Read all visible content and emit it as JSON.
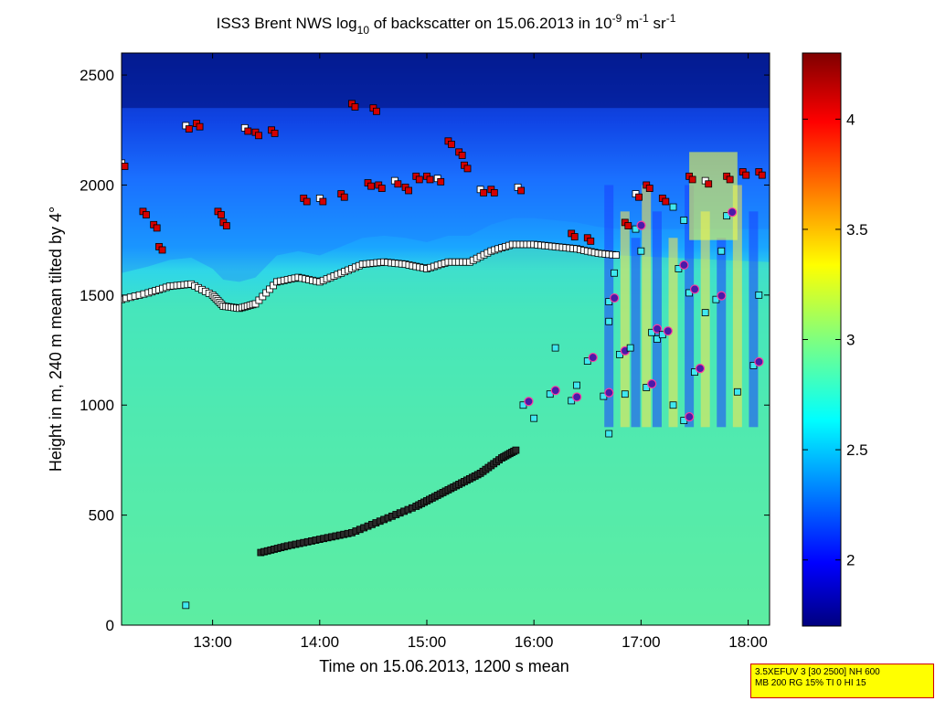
{
  "chart_data": {
    "type": "heatmap",
    "title": {
      "prefix": "ISS3 Brent NWS log",
      "sub": "10",
      "mid": " of backscatter on 15.06.2013 in 10",
      "sup1": "-9",
      "mid2": " m",
      "sup2": "-1",
      "mid3": " sr",
      "sup3": "-1"
    },
    "xlabel": "Time on 15.06.2013, 1200 s mean",
    "ylabel": "Height in m, 240 m mean tilted by 4°",
    "xlim": [
      12.15,
      18.2
    ],
    "ylim": [
      0,
      2600
    ],
    "x_ticks": [
      {
        "value": 13,
        "label": "13:00"
      },
      {
        "value": 14,
        "label": "14:00"
      },
      {
        "value": 15,
        "label": "15:00"
      },
      {
        "value": 16,
        "label": "16:00"
      },
      {
        "value": 17,
        "label": "17:00"
      },
      {
        "value": 18,
        "label": "18:00"
      }
    ],
    "y_ticks": [
      {
        "value": 0,
        "label": "0"
      },
      {
        "value": 500,
        "label": "500"
      },
      {
        "value": 1000,
        "label": "1000"
      },
      {
        "value": 1500,
        "label": "1500"
      },
      {
        "value": 2000,
        "label": "2000"
      },
      {
        "value": 2500,
        "label": "2500"
      }
    ],
    "colorbar": {
      "range": [
        1.7,
        4.3
      ],
      "ticks": [
        {
          "value": 2,
          "label": "2"
        },
        {
          "value": 2.5,
          "label": "2.5"
        },
        {
          "value": 3,
          "label": "3"
        },
        {
          "value": 3.5,
          "label": "3.5"
        },
        {
          "value": 4,
          "label": "4"
        }
      ],
      "colormap": "jet"
    },
    "field": {
      "background_value": 2.85,
      "mixed_layer_top_value": 2.7,
      "free_troposphere_value": 2.2,
      "upper_value": 1.8
    },
    "boundary_layer_top": {
      "name": "mixed-layer top",
      "x": [
        12.15,
        12.4,
        12.6,
        12.8,
        13.0,
        13.1,
        13.25,
        13.4,
        13.6,
        13.8,
        14.0,
        14.2,
        14.4,
        14.6,
        14.8,
        15.0,
        15.2,
        15.4,
        15.6,
        15.8,
        16.0,
        16.2,
        16.4,
        16.6,
        16.8
      ],
      "y": [
        1480,
        1510,
        1540,
        1550,
        1500,
        1450,
        1440,
        1460,
        1560,
        1580,
        1560,
        1600,
        1640,
        1650,
        1640,
        1620,
        1650,
        1650,
        1700,
        1730,
        1730,
        1720,
        1710,
        1690,
        1680
      ]
    },
    "developing_layer": {
      "name": "growing boundary layer",
      "x": [
        13.45,
        13.7,
        14.0,
        14.3,
        14.6,
        14.9,
        15.1,
        15.3,
        15.5,
        15.7,
        15.85
      ],
      "y": [
        330,
        360,
        390,
        420,
        480,
        540,
        590,
        640,
        690,
        760,
        800
      ]
    },
    "upper_layers": {
      "name": "elevated layers",
      "points": [
        {
          "x": 12.15,
          "y": 2100
        },
        {
          "x": 12.35,
          "y": 1880
        },
        {
          "x": 12.45,
          "y": 1820
        },
        {
          "x": 12.5,
          "y": 1720
        },
        {
          "x": 12.75,
          "y": 2270
        },
        {
          "x": 12.85,
          "y": 2280
        },
        {
          "x": 13.05,
          "y": 1880
        },
        {
          "x": 13.1,
          "y": 1830
        },
        {
          "x": 13.3,
          "y": 2260
        },
        {
          "x": 13.4,
          "y": 2240
        },
        {
          "x": 13.55,
          "y": 2250
        },
        {
          "x": 13.85,
          "y": 1940
        },
        {
          "x": 14.0,
          "y": 1940
        },
        {
          "x": 14.2,
          "y": 1960
        },
        {
          "x": 14.45,
          "y": 2010
        },
        {
          "x": 14.55,
          "y": 2000
        },
        {
          "x": 14.7,
          "y": 2020
        },
        {
          "x": 14.8,
          "y": 1990
        },
        {
          "x": 14.9,
          "y": 2040
        },
        {
          "x": 15.0,
          "y": 2040
        },
        {
          "x": 15.1,
          "y": 2030
        },
        {
          "x": 15.2,
          "y": 2200
        },
        {
          "x": 15.3,
          "y": 2150
        },
        {
          "x": 15.35,
          "y": 2090
        },
        {
          "x": 15.5,
          "y": 1980
        },
        {
          "x": 15.6,
          "y": 1980
        },
        {
          "x": 14.3,
          "y": 2370
        },
        {
          "x": 14.5,
          "y": 2350
        },
        {
          "x": 15.85,
          "y": 1990
        },
        {
          "x": 16.35,
          "y": 1780
        },
        {
          "x": 16.5,
          "y": 1760
        },
        {
          "x": 16.85,
          "y": 1830
        },
        {
          "x": 16.95,
          "y": 1960
        },
        {
          "x": 17.05,
          "y": 2000
        },
        {
          "x": 17.2,
          "y": 1940
        },
        {
          "x": 17.45,
          "y": 2040
        },
        {
          "x": 17.6,
          "y": 2020
        },
        {
          "x": 17.8,
          "y": 2040
        },
        {
          "x": 17.95,
          "y": 2060
        },
        {
          "x": 18.1,
          "y": 2060
        }
      ]
    },
    "convective_points": {
      "name": "convective cells",
      "points": [
        {
          "x": 15.9,
          "y": 1000
        },
        {
          "x": 16.0,
          "y": 940
        },
        {
          "x": 16.15,
          "y": 1050
        },
        {
          "x": 16.2,
          "y": 1260
        },
        {
          "x": 16.35,
          "y": 1020
        },
        {
          "x": 16.4,
          "y": 1090
        },
        {
          "x": 16.5,
          "y": 1200
        },
        {
          "x": 16.7,
          "y": 1380
        },
        {
          "x": 16.7,
          "y": 1470
        },
        {
          "x": 16.75,
          "y": 1600
        },
        {
          "x": 16.8,
          "y": 1230
        },
        {
          "x": 16.9,
          "y": 1260
        },
        {
          "x": 16.95,
          "y": 1800
        },
        {
          "x": 17.0,
          "y": 1700
        },
        {
          "x": 17.1,
          "y": 1330
        },
        {
          "x": 17.15,
          "y": 1300
        },
        {
          "x": 17.2,
          "y": 1320
        },
        {
          "x": 17.3,
          "y": 1900
        },
        {
          "x": 17.35,
          "y": 1620
        },
        {
          "x": 17.4,
          "y": 1840
        },
        {
          "x": 17.45,
          "y": 1510
        },
        {
          "x": 17.6,
          "y": 1420
        },
        {
          "x": 17.7,
          "y": 1480
        },
        {
          "x": 17.75,
          "y": 1700
        },
        {
          "x": 17.8,
          "y": 1860
        },
        {
          "x": 18.1,
          "y": 1500
        },
        {
          "x": 16.65,
          "y": 1040
        },
        {
          "x": 16.85,
          "y": 1050
        },
        {
          "x": 17.05,
          "y": 1080
        },
        {
          "x": 17.3,
          "y": 1000
        },
        {
          "x": 17.5,
          "y": 1150
        },
        {
          "x": 17.9,
          "y": 1060
        },
        {
          "x": 18.05,
          "y": 1180
        },
        {
          "x": 16.7,
          "y": 870
        },
        {
          "x": 17.4,
          "y": 930
        }
      ]
    },
    "stray_points": [
      {
        "x": 12.75,
        "y": 90
      }
    ]
  },
  "info_box": {
    "line1": "3.5XEFUV 3 [30 2500] NH 600",
    "line2": "MB 200 RG 15% TI 0 HI 15"
  }
}
